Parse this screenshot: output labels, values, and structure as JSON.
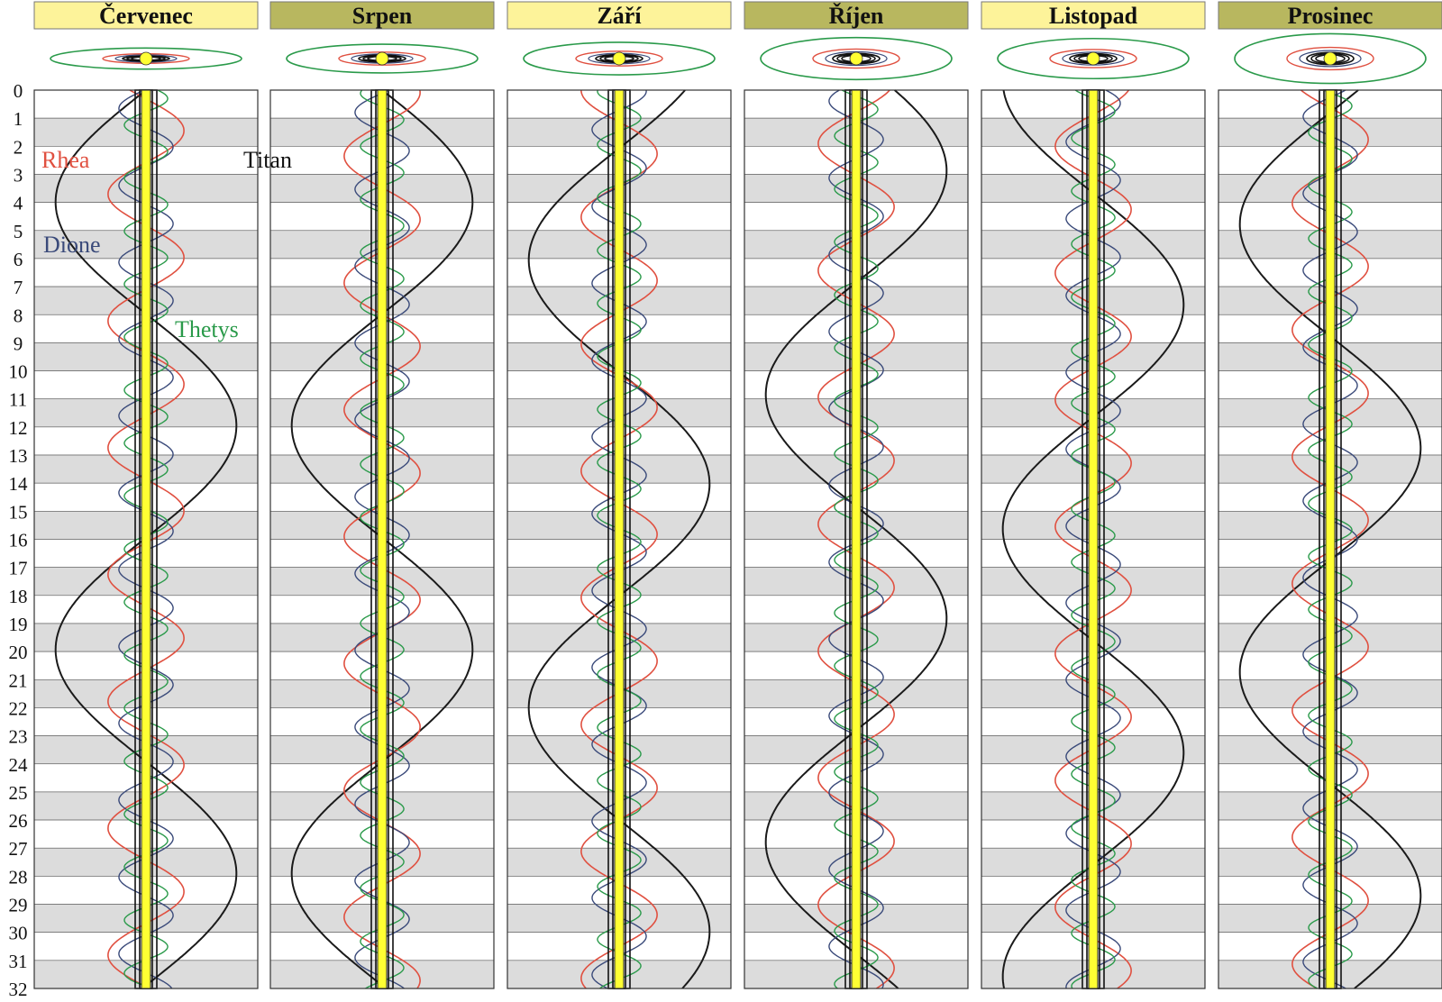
{
  "chart_data": {
    "type": "line",
    "day_axis": {
      "min": 0,
      "max": 32,
      "ticks": [
        0,
        1,
        2,
        3,
        4,
        5,
        6,
        7,
        8,
        9,
        10,
        11,
        12,
        13,
        14,
        15,
        16,
        17,
        18,
        19,
        20,
        21,
        22,
        23,
        24,
        25,
        26,
        27,
        28,
        29,
        30,
        31,
        32
      ]
    },
    "alternating_band_shading": true,
    "band_colors": {
      "band": "#dcdcdc",
      "white": "#ffffff",
      "header_light": "#fdf39a",
      "header_dark": "#b8b75f"
    },
    "months": [
      {
        "name": "Červenec",
        "header_style": "light",
        "ring_tilt": 0.11,
        "titan_phase": 0.5
      },
      {
        "name": "Srpen",
        "header_style": "dark",
        "ring_tilt": 0.15,
        "titan_phase": 0.0
      },
      {
        "name": "Září",
        "header_style": "light",
        "ring_tilt": 0.17,
        "titan_phase": 0.37
      },
      {
        "name": "Říjen",
        "header_style": "dark",
        "ring_tilt": 0.22,
        "titan_phase": 0.07
      },
      {
        "name": "Listopad",
        "header_style": "light",
        "ring_tilt": 0.21,
        "titan_phase": 0.77
      },
      {
        "name": "Prosinec",
        "header_style": "dark",
        "ring_tilt": 0.26,
        "titan_phase": 0.45
      }
    ],
    "series": [
      {
        "name": "Titan",
        "color": "#1a1a1a",
        "period_days": 15.945,
        "relative_amplitude": 1.0,
        "stroke": 2.0
      },
      {
        "name": "Rhea",
        "color": "#e05040",
        "period_days": 4.518,
        "relative_amplitude": 0.42,
        "stroke": 1.6
      },
      {
        "name": "Dione",
        "color": "#3a4a7a",
        "period_days": 2.737,
        "relative_amplitude": 0.3,
        "stroke": 1.4
      },
      {
        "name": "Thetys",
        "color": "#2a9a4a",
        "period_days": 1.888,
        "relative_amplitude": 0.24,
        "stroke": 1.4
      }
    ],
    "saturn_band_color": "#ffff33"
  },
  "labels": {
    "rhea": "Rhea",
    "titan": "Titan",
    "dione": "Dione",
    "thetys": "Thetys"
  }
}
